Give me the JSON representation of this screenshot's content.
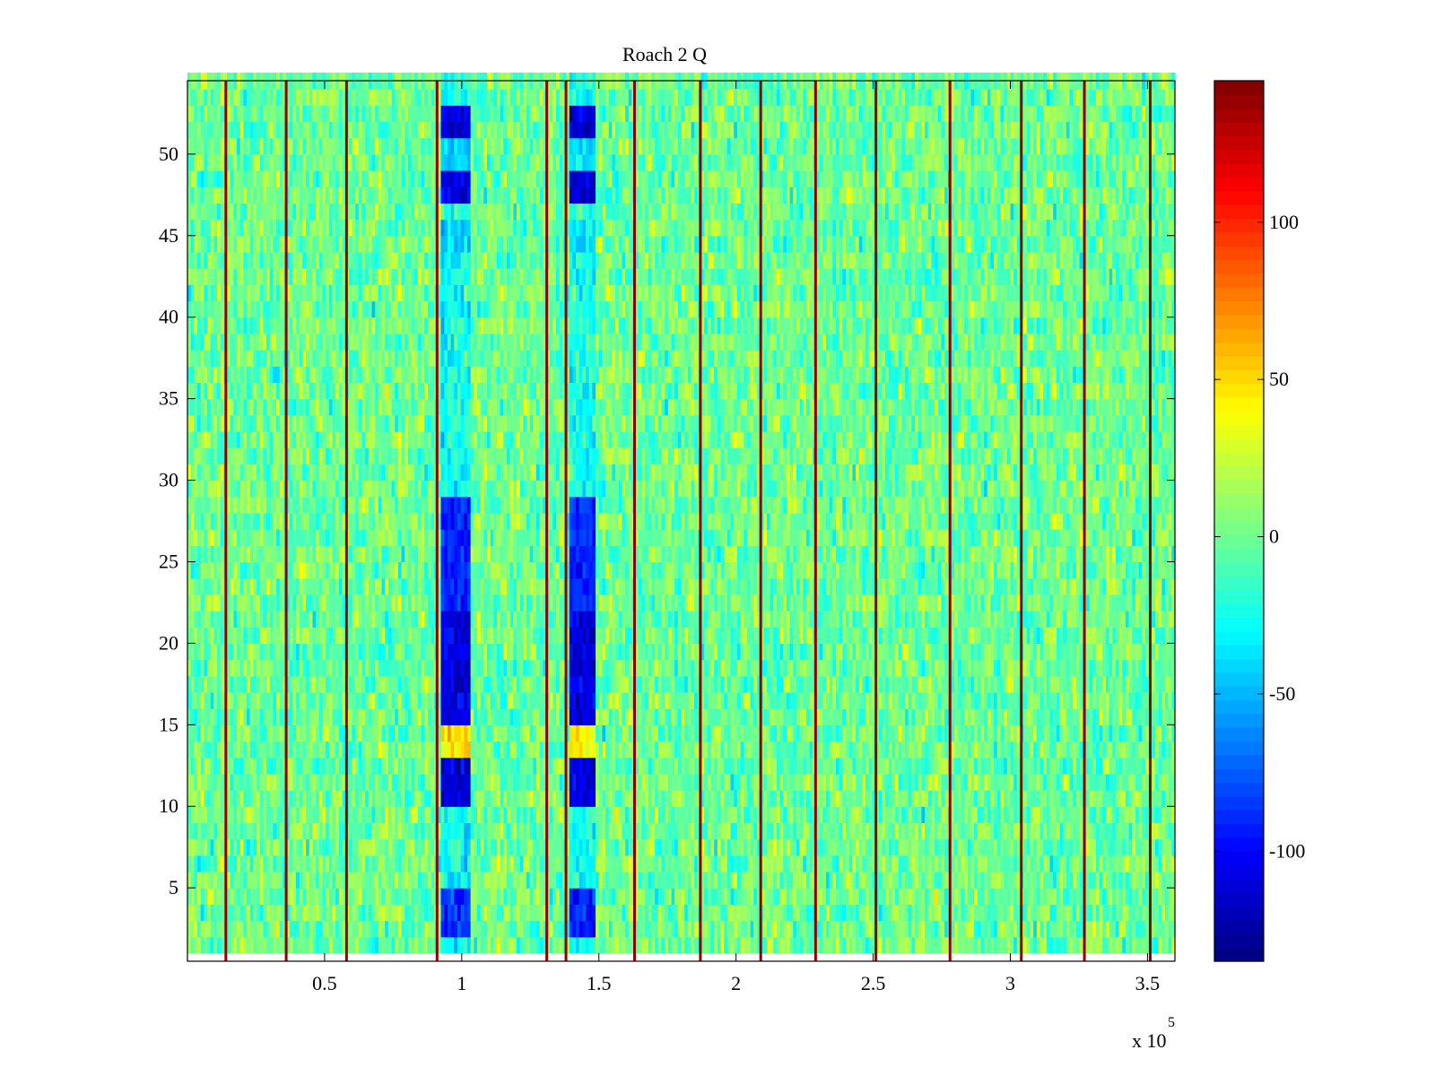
{
  "chart_data": {
    "type": "heatmap",
    "title": "Roach 2 Q",
    "xlabel": "",
    "ylabel": "",
    "x_multiplier": {
      "base": "x 10",
      "exponent": "5"
    },
    "xlim": [
      0,
      3.6
    ],
    "ylim": [
      0.5,
      54.5
    ],
    "x_ticks": [
      0.5,
      1,
      1.5,
      2,
      2.5,
      3,
      3.5
    ],
    "x_tick_labels": [
      "0.5",
      "1",
      "1.5",
      "2",
      "2.5",
      "3",
      "3.5"
    ],
    "y_ticks": [
      5,
      10,
      15,
      20,
      25,
      30,
      35,
      40,
      45,
      50
    ],
    "y_tick_labels": [
      "5",
      "10",
      "15",
      "20",
      "25",
      "30",
      "35",
      "40",
      "45",
      "50"
    ],
    "rows": 54,
    "colorbar": {
      "colormap": "jet",
      "clim": [
        -135,
        145
      ],
      "ticks": [
        -100,
        -50,
        0,
        50,
        100
      ],
      "tick_labels": [
        "-100",
        "-50",
        "0",
        "50",
        "100"
      ]
    },
    "background_level": 0,
    "spike_columns_x": [
      0.14,
      0.36,
      0.58,
      0.91,
      1.31,
      1.38,
      1.63,
      1.87,
      2.09,
      2.29,
      2.51,
      2.78,
      3.04,
      3.27,
      3.51
    ],
    "spike_level": 140,
    "low_bands": [
      {
        "x_range": [
          0.93,
          1.03
        ],
        "level": -25
      },
      {
        "x_range": [
          1.39,
          1.49
        ],
        "level": -25
      }
    ],
    "low_band_rows": [
      {
        "rows": [
          47,
          52
        ],
        "level": -110
      },
      {
        "rows": [
          49,
          50
        ],
        "level": -40
      },
      {
        "rows": [
          44,
          45
        ],
        "level": -40
      },
      {
        "rows": [
          28,
          28
        ],
        "level": -80
      },
      {
        "rows": [
          22,
          28
        ],
        "level": -90
      },
      {
        "rows": [
          15,
          21
        ],
        "level": -110
      },
      {
        "rows": [
          13,
          14
        ],
        "level": 45
      },
      {
        "rows": [
          10,
          12
        ],
        "level": -110
      },
      {
        "rows": [
          2,
          4
        ],
        "level": -90
      }
    ]
  }
}
